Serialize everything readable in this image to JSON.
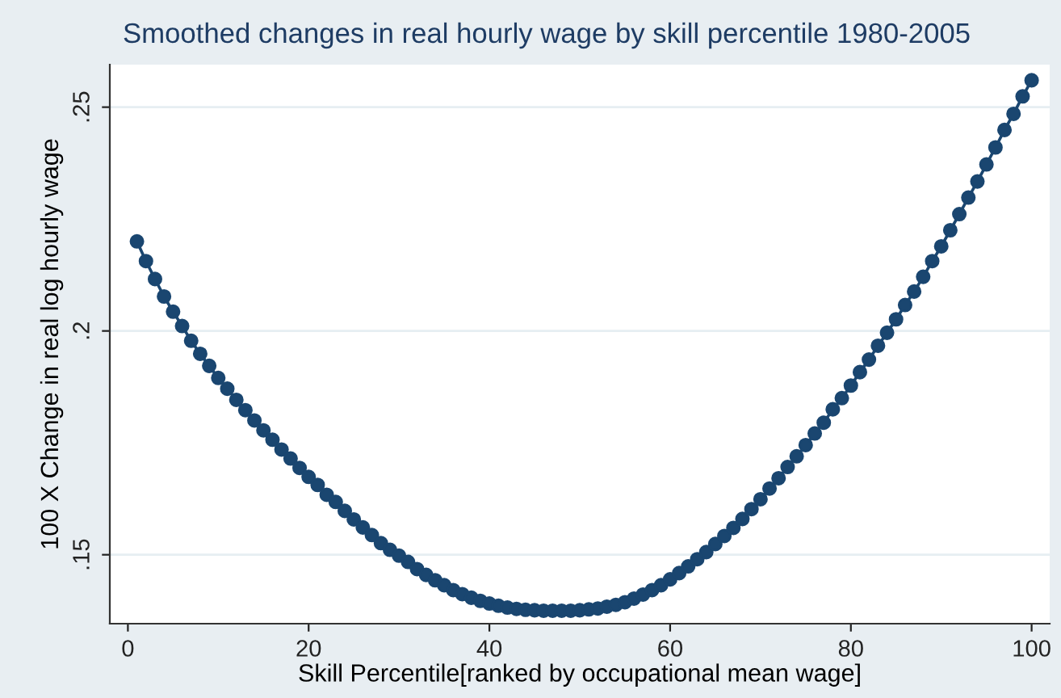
{
  "chart_data": {
    "type": "line",
    "title": "Smoothed changes in real hourly wage by skill percentile 1980-2005",
    "xlabel": "Skill Percentile[ranked by occupational mean wage]",
    "ylabel": "100 X Change in real log hourly wage",
    "x": [
      1,
      2,
      3,
      4,
      5,
      6,
      7,
      8,
      9,
      10,
      11,
      12,
      13,
      14,
      15,
      16,
      17,
      18,
      19,
      20,
      21,
      22,
      23,
      24,
      25,
      26,
      27,
      28,
      29,
      30,
      31,
      32,
      33,
      34,
      35,
      36,
      37,
      38,
      39,
      40,
      41,
      42,
      43,
      44,
      45,
      46,
      47,
      48,
      49,
      50,
      51,
      52,
      53,
      54,
      55,
      56,
      57,
      58,
      59,
      60,
      61,
      62,
      63,
      64,
      65,
      66,
      67,
      68,
      69,
      70,
      71,
      72,
      73,
      74,
      75,
      76,
      77,
      78,
      79,
      80,
      81,
      82,
      83,
      84,
      85,
      86,
      87,
      88,
      89,
      90,
      91,
      92,
      93,
      94,
      95,
      96,
      97,
      98,
      99,
      100
    ],
    "series": [
      {
        "color": "#1a4670",
        "values": [
          0.22,
          0.2156,
          0.2116,
          0.2077,
          0.2043,
          0.2011,
          0.1978,
          0.1949,
          0.1922,
          0.1895,
          0.1871,
          0.1846,
          0.1823,
          0.18,
          0.1778,
          0.1757,
          0.1735,
          0.1715,
          0.1694,
          0.1674,
          0.1656,
          0.1634,
          0.1618,
          0.1598,
          0.1579,
          0.1561,
          0.1544,
          0.1526,
          0.1511,
          0.1498,
          0.1484,
          0.1468,
          0.1455,
          0.1443,
          0.1432,
          0.1421,
          0.1412,
          0.1404,
          0.1397,
          0.1391,
          0.1386,
          0.1382,
          0.1379,
          0.1377,
          0.1376,
          0.1375,
          0.1375,
          0.1375,
          0.1375,
          0.1376,
          0.1378,
          0.138,
          0.1384,
          0.1388,
          0.1394,
          0.1402,
          0.1411,
          0.1421,
          0.1432,
          0.1445,
          0.1459,
          0.1474,
          0.149,
          0.1506,
          0.1524,
          0.1542,
          0.156,
          0.158,
          0.1602,
          0.1624,
          0.1648,
          0.1671,
          0.1696,
          0.172,
          0.1745,
          0.1771,
          0.1795,
          0.1825,
          0.185,
          0.1878,
          0.1908,
          0.1936,
          0.1967,
          0.1996,
          0.2026,
          0.2058,
          0.2088,
          0.2121,
          0.2156,
          0.2189,
          0.2225,
          0.2261,
          0.2298,
          0.2334,
          0.2372,
          0.241,
          0.2449,
          0.2485,
          0.2524,
          0.256
        ]
      }
    ],
    "xlim": [
      -2,
      102
    ],
    "ylim": [
      0.1346,
      0.2595
    ],
    "xticks": [
      0,
      20,
      40,
      60,
      80,
      100
    ],
    "yticks": [
      {
        "value": 0.15,
        "label": ".15"
      },
      {
        "value": 0.2,
        "label": ".2"
      },
      {
        "value": 0.25,
        "label": ".25"
      }
    ],
    "grid": "y",
    "marker": "circle",
    "line_style": "solid"
  }
}
